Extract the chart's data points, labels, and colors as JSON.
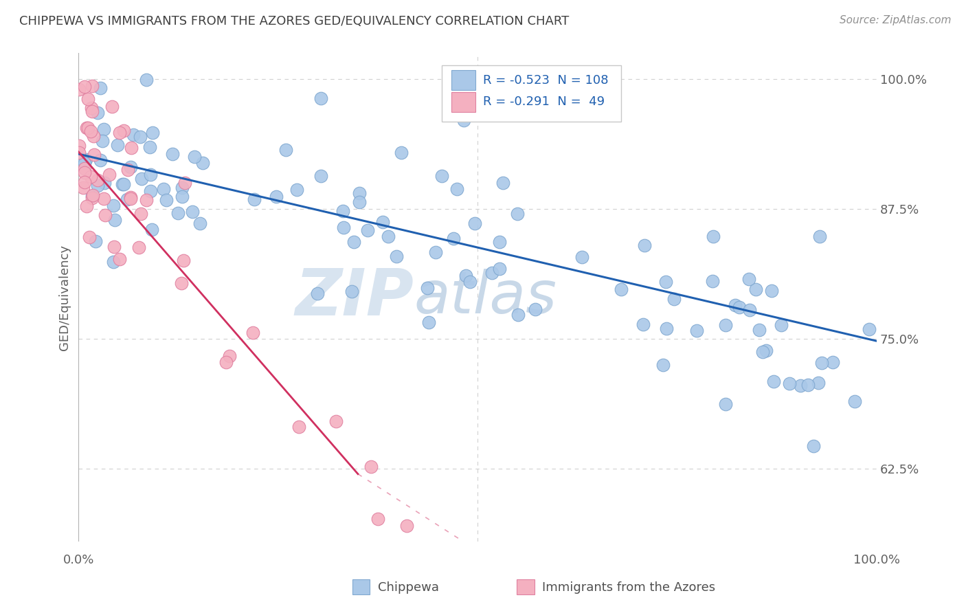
{
  "title": "CHIPPEWA VS IMMIGRANTS FROM THE AZORES GED/EQUIVALENCY CORRELATION CHART",
  "source": "Source: ZipAtlas.com",
  "ylabel": "GED/Equivalency",
  "watermark_zip": "ZIP",
  "watermark_atlas": "atlas",
  "blue_R": -0.523,
  "blue_N": 108,
  "pink_R": -0.291,
  "pink_N": 49,
  "xlim": [
    0.0,
    1.0
  ],
  "ylim": [
    0.555,
    1.025
  ],
  "yticks": [
    0.625,
    0.75,
    0.875,
    1.0
  ],
  "ytick_labels": [
    "62.5%",
    "75.0%",
    "87.5%",
    "100.0%"
  ],
  "blue_line_color": "#2060b0",
  "pink_line_color": "#d03060",
  "grid_color": "#d0d0d0",
  "dot_color_blue": "#aac8e8",
  "dot_color_pink": "#f4b0c0",
  "dot_edge_blue": "#80a8d0",
  "dot_edge_pink": "#e080a0",
  "title_color": "#404040",
  "axis_label_color": "#606060",
  "tick_color": "#606060",
  "legend_text_color": "#2060b0",
  "watermark_color": "#d8e4f0",
  "watermark_atlas_color": "#c8d8e8",
  "background_color": "#ffffff",
  "blue_seed": 42,
  "pink_seed": 99
}
